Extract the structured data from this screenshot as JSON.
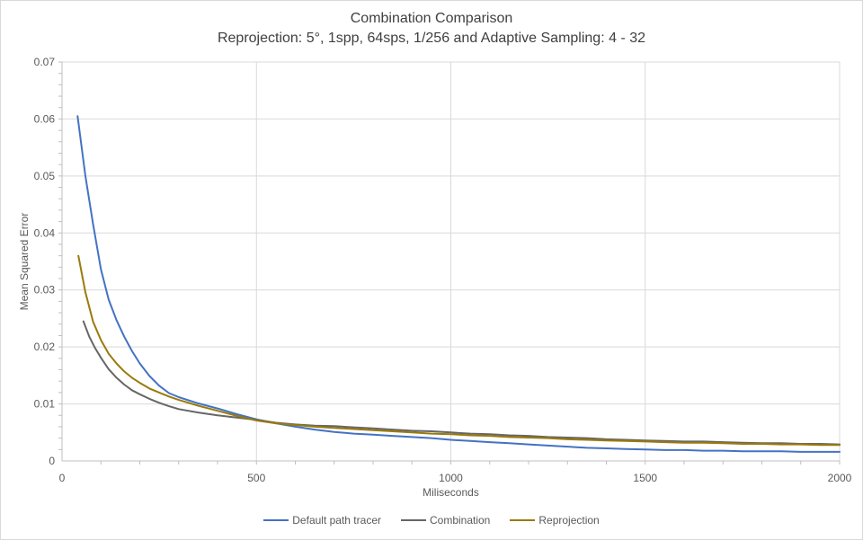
{
  "window": {
    "background": "#FFFFFF",
    "border_color": "#D9D9D9"
  },
  "header": {
    "title": "Combination Comparison",
    "subtitle": "Reprojection: 5°, 1spp, 64sps, 1/256 and Adaptive Sampling: 4 - 32"
  },
  "chart_data": {
    "type": "line",
    "title": "Combination Comparison",
    "subtitle": "Reprojection: 5°, 1spp, 64sps, 1/256 and Adaptive Sampling: 4 - 32",
    "xlabel": "Miliseconds",
    "ylabel": "Mean Squared Error",
    "xlim": [
      0,
      2000
    ],
    "ylim": [
      0,
      0.07
    ],
    "x_ticks": [
      0,
      500,
      1000,
      1500,
      2000
    ],
    "x_tick_labels": [
      "0",
      "500",
      "1000",
      "1500",
      "2000"
    ],
    "y_ticks": [
      0,
      0.01,
      0.02,
      0.03,
      0.04,
      0.05,
      0.06,
      0.07
    ],
    "y_tick_labels": [
      "0",
      "0.01",
      "0.02",
      "0.03",
      "0.04",
      "0.05",
      "0.06",
      "0.07"
    ],
    "x_minor_tick_step": 100,
    "y_minor_tick_step": 0.002,
    "grid": true,
    "legend_position": "bottom",
    "gridline_color": "#D9D9D9",
    "axis_color": "#BFBFBF",
    "tick_label_color": "#595959",
    "series": [
      {
        "name": "Default path tracer",
        "color": "#4472C4",
        "points": [
          [
            40,
            0.0605
          ],
          [
            60,
            0.05
          ],
          [
            80,
            0.0415
          ],
          [
            100,
            0.0336
          ],
          [
            120,
            0.0283
          ],
          [
            140,
            0.0247
          ],
          [
            160,
            0.0218
          ],
          [
            180,
            0.0193
          ],
          [
            200,
            0.0171
          ],
          [
            225,
            0.0149
          ],
          [
            250,
            0.0132
          ],
          [
            275,
            0.0119
          ],
          [
            300,
            0.0112
          ],
          [
            350,
            0.0101
          ],
          [
            400,
            0.0092
          ],
          [
            450,
            0.0082
          ],
          [
            500,
            0.0073
          ],
          [
            550,
            0.0066
          ],
          [
            600,
            0.006
          ],
          [
            650,
            0.0055
          ],
          [
            700,
            0.0051
          ],
          [
            750,
            0.0048
          ],
          [
            800,
            0.0046
          ],
          [
            850,
            0.0044
          ],
          [
            900,
            0.0042
          ],
          [
            950,
            0.004
          ],
          [
            1000,
            0.0037
          ],
          [
            1050,
            0.0035
          ],
          [
            1100,
            0.0033
          ],
          [
            1150,
            0.0031
          ],
          [
            1200,
            0.0029
          ],
          [
            1250,
            0.0027
          ],
          [
            1300,
            0.0025
          ],
          [
            1350,
            0.0023
          ],
          [
            1400,
            0.0022
          ],
          [
            1450,
            0.0021
          ],
          [
            1500,
            0.002
          ],
          [
            1550,
            0.0019
          ],
          [
            1600,
            0.0019
          ],
          [
            1650,
            0.0018
          ],
          [
            1700,
            0.0018
          ],
          [
            1750,
            0.0017
          ],
          [
            1800,
            0.0017
          ],
          [
            1850,
            0.0017
          ],
          [
            1900,
            0.0016
          ],
          [
            1950,
            0.0016
          ],
          [
            2000,
            0.0016
          ]
        ]
      },
      {
        "name": "Combination",
        "color": "#666666",
        "points": [
          [
            55,
            0.0245
          ],
          [
            70,
            0.0218
          ],
          [
            85,
            0.0198
          ],
          [
            100,
            0.0181
          ],
          [
            120,
            0.0161
          ],
          [
            140,
            0.0146
          ],
          [
            160,
            0.0134
          ],
          [
            180,
            0.0124
          ],
          [
            200,
            0.0117
          ],
          [
            225,
            0.0109
          ],
          [
            250,
            0.0102
          ],
          [
            275,
            0.0096
          ],
          [
            300,
            0.0091
          ],
          [
            350,
            0.0085
          ],
          [
            400,
            0.008
          ],
          [
            450,
            0.0076
          ],
          [
            500,
            0.0072
          ],
          [
            550,
            0.0067
          ],
          [
            600,
            0.0064
          ],
          [
            650,
            0.0062
          ],
          [
            700,
            0.0061
          ],
          [
            750,
            0.0059
          ],
          [
            800,
            0.0057
          ],
          [
            850,
            0.0055
          ],
          [
            900,
            0.0053
          ],
          [
            950,
            0.0052
          ],
          [
            1000,
            0.005
          ],
          [
            1050,
            0.0048
          ],
          [
            1100,
            0.0047
          ],
          [
            1150,
            0.0045
          ],
          [
            1200,
            0.0044
          ],
          [
            1250,
            0.0042
          ],
          [
            1300,
            0.0041
          ],
          [
            1350,
            0.004
          ],
          [
            1400,
            0.0038
          ],
          [
            1450,
            0.0037
          ],
          [
            1500,
            0.0036
          ],
          [
            1550,
            0.0035
          ],
          [
            1600,
            0.0034
          ],
          [
            1650,
            0.0034
          ],
          [
            1700,
            0.0033
          ],
          [
            1750,
            0.0032
          ],
          [
            1800,
            0.0031
          ],
          [
            1850,
            0.0031
          ],
          [
            1900,
            0.003
          ],
          [
            1950,
            0.003
          ],
          [
            2000,
            0.0029
          ]
        ]
      },
      {
        "name": "Reprojection",
        "color": "#9A7A0A",
        "points": [
          [
            42,
            0.036
          ],
          [
            60,
            0.0296
          ],
          [
            80,
            0.0244
          ],
          [
            100,
            0.0212
          ],
          [
            120,
            0.0188
          ],
          [
            140,
            0.0171
          ],
          [
            160,
            0.0157
          ],
          [
            180,
            0.0146
          ],
          [
            200,
            0.0137
          ],
          [
            225,
            0.0127
          ],
          [
            250,
            0.012
          ],
          [
            275,
            0.0113
          ],
          [
            300,
            0.0107
          ],
          [
            350,
            0.0097
          ],
          [
            400,
            0.0088
          ],
          [
            450,
            0.0079
          ],
          [
            500,
            0.0071
          ],
          [
            550,
            0.0066
          ],
          [
            600,
            0.0063
          ],
          [
            650,
            0.006
          ],
          [
            700,
            0.0058
          ],
          [
            750,
            0.0056
          ],
          [
            800,
            0.0054
          ],
          [
            850,
            0.0052
          ],
          [
            900,
            0.005
          ],
          [
            950,
            0.0048
          ],
          [
            1000,
            0.0047
          ],
          [
            1050,
            0.0045
          ],
          [
            1100,
            0.0044
          ],
          [
            1150,
            0.0042
          ],
          [
            1200,
            0.0041
          ],
          [
            1250,
            0.004
          ],
          [
            1300,
            0.0038
          ],
          [
            1350,
            0.0037
          ],
          [
            1400,
            0.0036
          ],
          [
            1450,
            0.0035
          ],
          [
            1500,
            0.0034
          ],
          [
            1550,
            0.0033
          ],
          [
            1600,
            0.0032
          ],
          [
            1650,
            0.0032
          ],
          [
            1700,
            0.0031
          ],
          [
            1750,
            0.003
          ],
          [
            1800,
            0.003
          ],
          [
            1850,
            0.0029
          ],
          [
            1900,
            0.0029
          ],
          [
            1950,
            0.0028
          ],
          [
            2000,
            0.0028
          ]
        ]
      }
    ]
  }
}
